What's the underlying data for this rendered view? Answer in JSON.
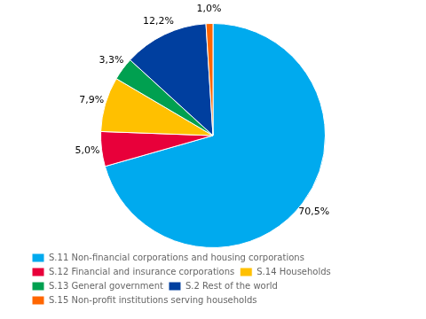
{
  "chart_data": {
    "type": "pie",
    "categories": [
      "S.11 Non-financial corporations and housing corporations",
      "S.12 Financial and insurance corporations",
      "S.14 Households",
      "S.13 General government",
      "S.2 Rest of the world",
      "S.15 Non-profit institutions serving households"
    ],
    "values": [
      70.5,
      5.0,
      7.9,
      3.3,
      12.2,
      1.0
    ],
    "value_labels": [
      "70,5%",
      "5,0%",
      "7,9%",
      "3,3%",
      "12,2%",
      "1,0%"
    ],
    "colors": [
      "#00AAEE",
      "#E8003A",
      "#FFC000",
      "#00A050",
      "#003F9F",
      "#FF6600"
    ],
    "data_labels": true,
    "legend": "lower left"
  }
}
